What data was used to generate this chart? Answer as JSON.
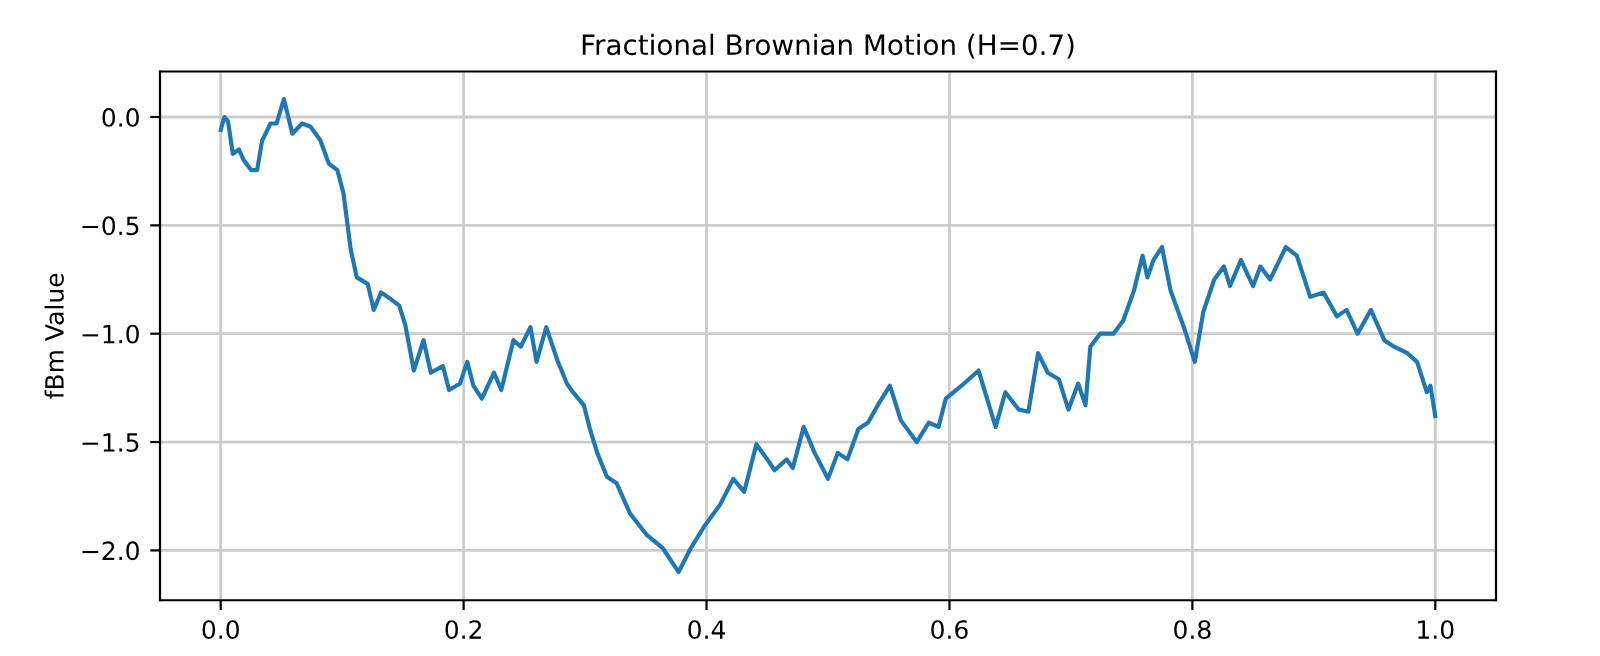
{
  "chart_data": {
    "type": "line",
    "title": "Fractional Brownian Motion (H=0.7)",
    "ylabel": "fBm Value",
    "xlim": [
      -0.05,
      1.05
    ],
    "ylim": [
      -2.23,
      0.21
    ],
    "xticks": [
      {
        "value": 0,
        "label": "0.0"
      },
      0.2,
      0.4,
      0.6,
      0.8,
      {
        "value": 1,
        "label": "1.0"
      }
    ],
    "yticks": [
      {
        "value": -2,
        "label": "−2.0"
      },
      {
        "value": -1.5,
        "label": "−1.5"
      },
      {
        "value": -1,
        "label": "−1.0"
      },
      {
        "value": -0.5,
        "label": "−0.5"
      },
      {
        "value": 0,
        "label": "0.0"
      }
    ],
    "grid": true,
    "legend": false,
    "marker": "none",
    "line_style": "solid",
    "series": [
      {
        "color": "#1f77b4",
        "x": [
          0,
          0.003,
          0.006,
          0.01,
          0.015,
          0.019,
          0.025,
          0.03,
          0.034,
          0.041,
          0.046,
          0.052,
          0.059,
          0.067,
          0.074,
          0.082,
          0.089,
          0.096,
          0.101,
          0.107,
          0.112,
          0.121,
          0.126,
          0.132,
          0.14,
          0.147,
          0.152,
          0.159,
          0.167,
          0.173,
          0.183,
          0.188,
          0.197,
          0.203,
          0.208,
          0.215,
          0.225,
          0.231,
          0.241,
          0.247,
          0.255,
          0.26,
          0.268,
          0.277,
          0.285,
          0.29,
          0.299,
          0.304,
          0.31,
          0.318,
          0.326,
          0.337,
          0.351,
          0.364,
          0.377,
          0.387,
          0.398,
          0.411,
          0.422,
          0.431,
          0.441,
          0.45,
          0.456,
          0.466,
          0.471,
          0.48,
          0.489,
          0.5,
          0.508,
          0.516,
          0.525,
          0.533,
          0.541,
          0.551,
          0.56,
          0.573,
          0.583,
          0.591,
          0.597,
          0.61,
          0.624,
          0.638,
          0.646,
          0.657,
          0.665,
          0.673,
          0.681,
          0.69,
          0.698,
          0.706,
          0.712,
          0.716,
          0.724,
          0.735,
          0.743,
          0.752,
          0.759,
          0.763,
          0.768,
          0.775,
          0.782,
          0.793,
          0.802,
          0.809,
          0.818,
          0.826,
          0.831,
          0.84,
          0.85,
          0.856,
          0.864,
          0.877,
          0.886,
          0.897,
          0.908,
          0.919,
          0.927,
          0.936,
          0.947,
          0.958,
          0.966,
          0.977,
          0.985,
          0.993,
          0.996,
          1.0
        ],
        "values": [
          -0.06,
          0,
          -0.02,
          -0.17,
          -0.15,
          -0.2,
          -0.245,
          -0.245,
          -0.11,
          -0.03,
          -0.03,
          0.083,
          -0.077,
          -0.03,
          -0.045,
          -0.107,
          -0.215,
          -0.245,
          -0.35,
          -0.61,
          -0.74,
          -0.77,
          -0.89,
          -0.81,
          -0.84,
          -0.87,
          -0.96,
          -1.17,
          -1.03,
          -1.18,
          -1.15,
          -1.26,
          -1.23,
          -1.13,
          -1.24,
          -1.3,
          -1.18,
          -1.26,
          -1.03,
          -1.06,
          -0.97,
          -1.13,
          -0.97,
          -1.12,
          -1.23,
          -1.27,
          -1.33,
          -1.44,
          -1.55,
          -1.66,
          -1.69,
          -1.83,
          -1.93,
          -1.99,
          -2.1,
          -1.99,
          -1.89,
          -1.79,
          -1.67,
          -1.73,
          -1.51,
          -1.58,
          -1.63,
          -1.58,
          -1.62,
          -1.43,
          -1.55,
          -1.67,
          -1.55,
          -1.58,
          -1.44,
          -1.41,
          -1.33,
          -1.24,
          -1.4,
          -1.5,
          -1.41,
          -1.43,
          -1.3,
          -1.24,
          -1.17,
          -1.43,
          -1.27,
          -1.35,
          -1.36,
          -1.09,
          -1.18,
          -1.21,
          -1.35,
          -1.23,
          -1.33,
          -1.06,
          -1.0,
          -1.0,
          -0.94,
          -0.8,
          -0.64,
          -0.74,
          -0.66,
          -0.6,
          -0.8,
          -0.97,
          -1.13,
          -0.9,
          -0.75,
          -0.69,
          -0.78,
          -0.66,
          -0.78,
          -0.69,
          -0.75,
          -0.6,
          -0.64,
          -0.83,
          -0.81,
          -0.92,
          -0.89,
          -1.0,
          -0.89,
          -1.03,
          -1.06,
          -1.09,
          -1.13,
          -1.27,
          -1.24,
          -1.38
        ]
      }
    ]
  }
}
